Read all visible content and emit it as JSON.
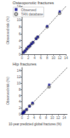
{
  "chart_data": [
    {
      "type": "scatter",
      "title": "Osteoporotic fractures",
      "ylabel": "Observed risk (%)",
      "xlim": [
        0,
        14
      ],
      "ylim": [
        0,
        14
      ],
      "xticks": [
        0,
        2,
        4,
        6,
        8,
        10,
        12,
        14
      ],
      "yticks": [
        0,
        2,
        4,
        6,
        8,
        10,
        12,
        14
      ],
      "grid": false,
      "legend": "upper left",
      "series": [
        {
          "name": "Observed",
          "type": "scatter",
          "color": "#00008B",
          "marker": "square",
          "x": [
            0.5,
            1.0,
            1.5,
            2.0,
            2.5,
            3.0,
            3.5,
            4.5,
            5.0,
            8.0,
            12.0
          ],
          "values": [
            0.5,
            1.0,
            1.5,
            2.2,
            2.5,
            3.0,
            3.5,
            4.5,
            5.1,
            8.2,
            12.5
          ]
        },
        {
          "name": "TAN database",
          "type": "scatter",
          "color": "#666666",
          "marker": "open_circle",
          "x": [
            0.5,
            1.0,
            1.5,
            2.0,
            2.5,
            3.0,
            3.5,
            4.5,
            5.0,
            8.0,
            12.0
          ],
          "values": [
            0.6,
            0.9,
            1.6,
            2.0,
            2.4,
            3.1,
            3.4,
            4.6,
            5.0,
            8.0,
            12.0
          ]
        },
        {
          "type": "line",
          "line_style": "dashed",
          "color": "#000000",
          "x": [
            0,
            14
          ],
          "values": [
            0,
            14
          ]
        }
      ]
    },
    {
      "type": "scatter",
      "title": "Hip fractures",
      "xlabel": "10-year predicted global fractures (%)",
      "ylabel": "Observed risk (%)",
      "xlim": [
        0,
        15
      ],
      "ylim": [
        0,
        15
      ],
      "xticks": [
        0,
        2,
        4,
        6,
        8,
        10,
        12,
        14
      ],
      "yticks": [
        0,
        2,
        4,
        6,
        8,
        10,
        12,
        14
      ],
      "grid": false,
      "series": [
        {
          "name": "Observed",
          "type": "scatter",
          "color": "#00008B",
          "marker": "square",
          "x": [
            0.2,
            0.4,
            0.6,
            0.8,
            1.5,
            2.5,
            3.5,
            9.0
          ],
          "values": [
            0.2,
            0.4,
            0.6,
            0.8,
            1.5,
            2.5,
            3.6,
            9.5
          ]
        },
        {
          "name": "TAN database",
          "type": "scatter",
          "color": "#666666",
          "marker": "open_circle",
          "x": [
            0.2,
            0.4,
            0.6,
            0.8,
            1.5,
            2.5,
            3.5,
            9.0
          ],
          "values": [
            0.2,
            0.4,
            0.5,
            0.9,
            1.4,
            2.6,
            3.4,
            8.8
          ]
        },
        {
          "type": "line",
          "line_style": "dashed",
          "color": "#000000",
          "x": [
            0,
            15
          ],
          "values": [
            0,
            15
          ]
        }
      ]
    }
  ]
}
